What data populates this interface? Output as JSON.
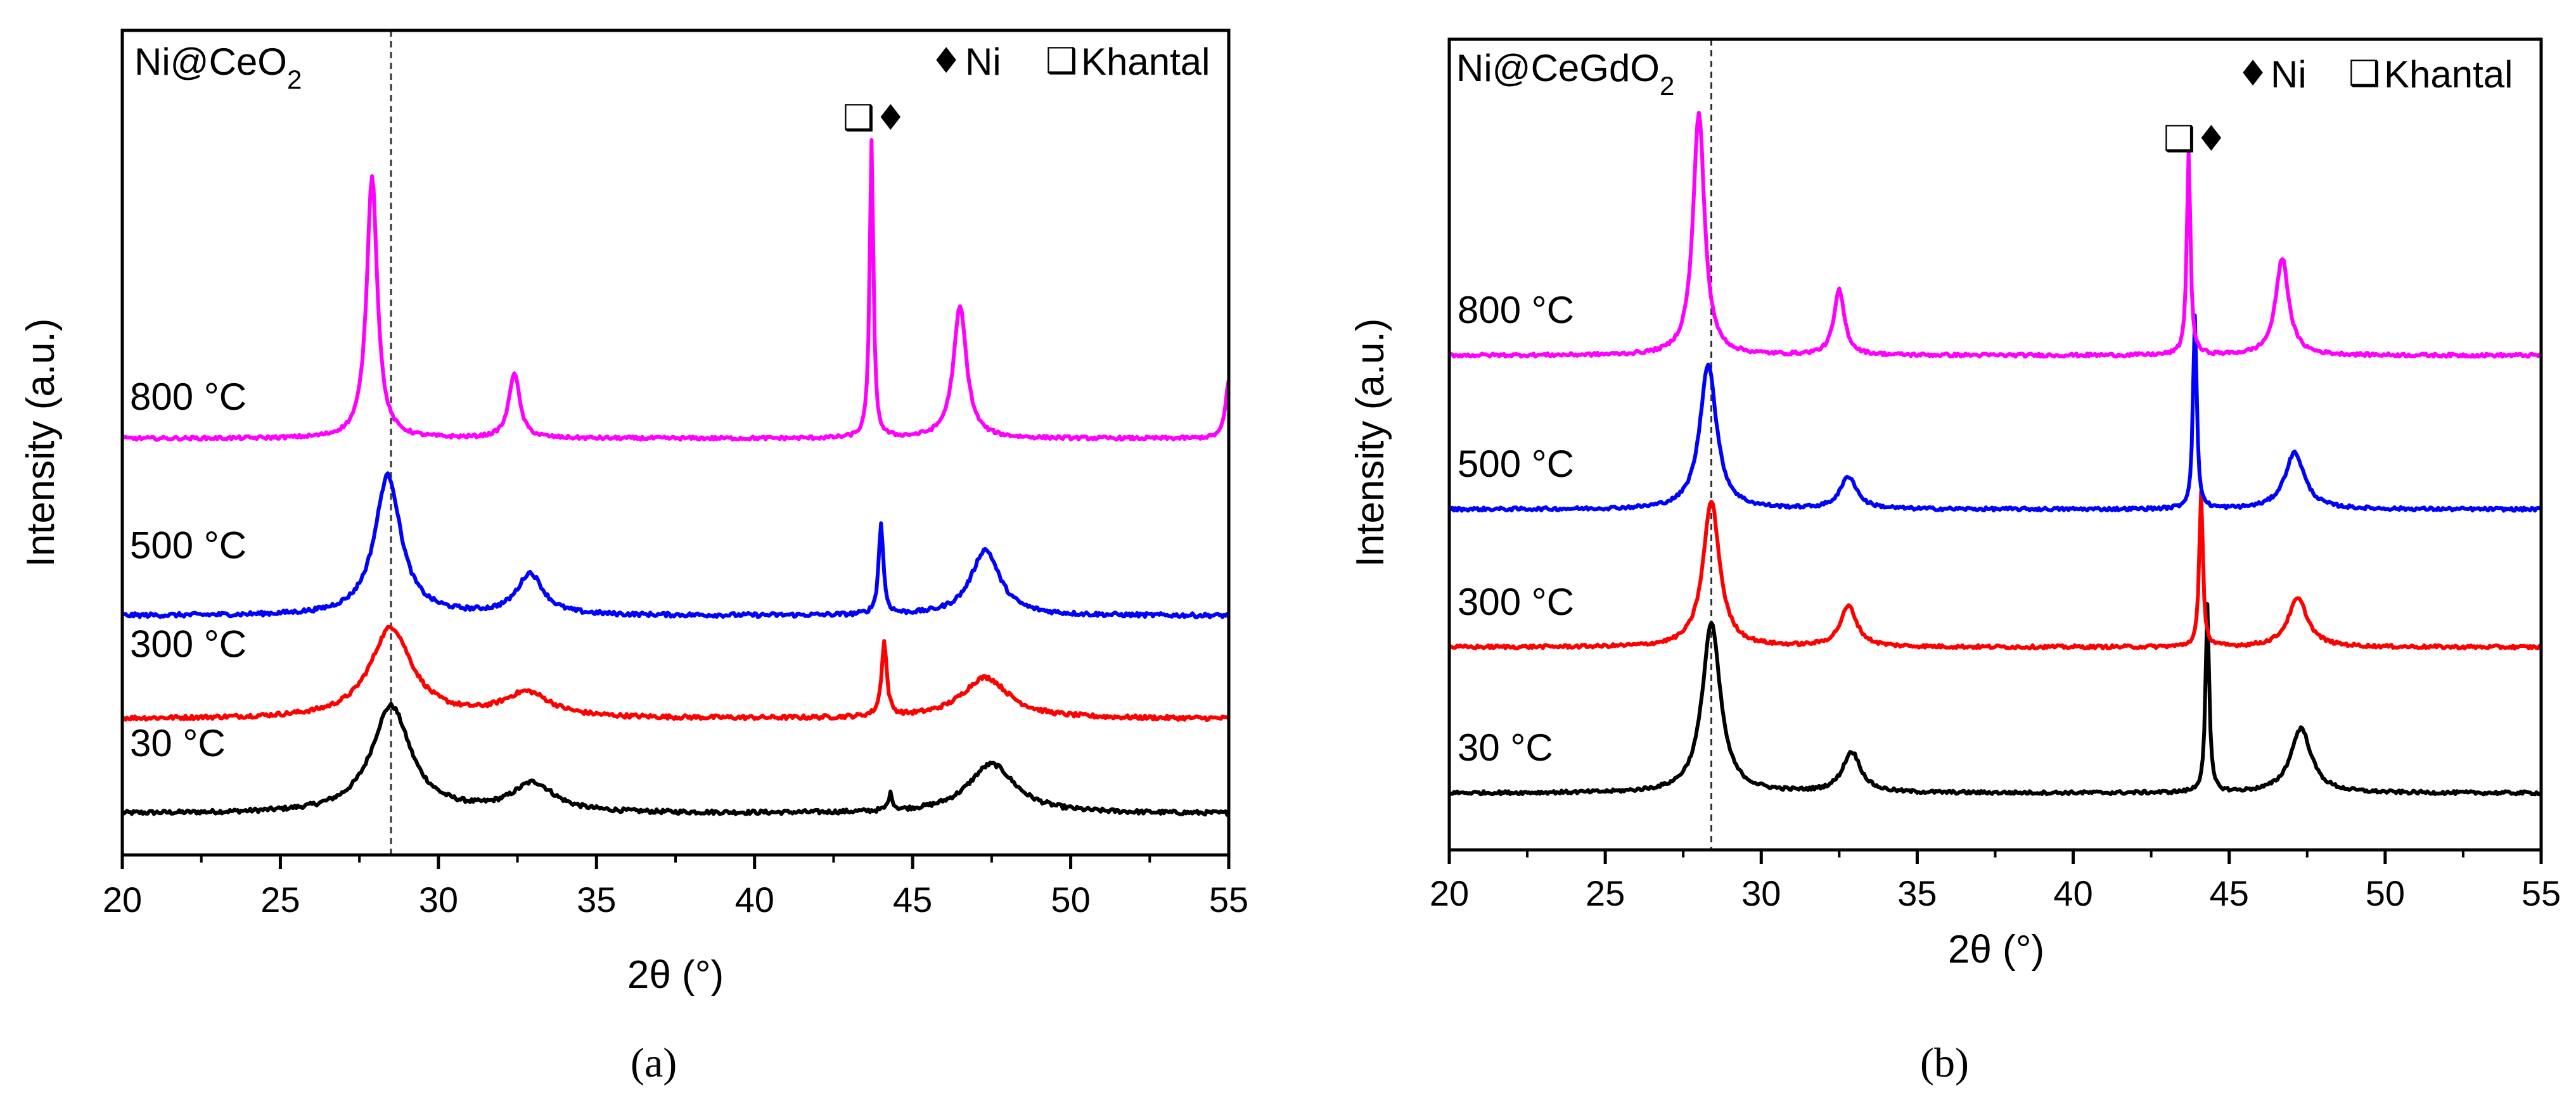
{
  "chart_data": [
    {
      "type": "line",
      "title": "Ni@CeO2",
      "title_main": "Ni@CeO",
      "title_sub": "2",
      "caption": "(a)",
      "caption_letter": "a",
      "xlabel": "2θ (°)",
      "ylabel": "Intensity (a.u.)",
      "xlim": [
        20,
        55
      ],
      "ylim": [
        0,
        100
      ],
      "xticks": [
        20,
        25,
        30,
        35,
        40,
        45,
        50,
        55
      ],
      "reference_line_x": 28.5,
      "legend": [
        {
          "symbol": "♦",
          "label": "Ni"
        },
        {
          "symbol": "❑",
          "label": "Khantal"
        }
      ],
      "peak_markers": {
        "x": 44,
        "text": "❑♦"
      },
      "series": [
        {
          "name": "30 °C",
          "color": "#000000",
          "baseline": 5,
          "noise": 0.5,
          "label_y": 12,
          "peaks": [
            [
              28.5,
              13,
              0.75
            ],
            [
              33.0,
              3.5,
              0.8
            ],
            [
              44.3,
              2,
              0.08
            ],
            [
              47.5,
              6,
              0.9
            ]
          ]
        },
        {
          "name": "300 °C",
          "color": "#ff0000",
          "baseline": 16.5,
          "noise": 0.5,
          "label_y": 24,
          "peaks": [
            [
              28.5,
              11,
              0.8
            ],
            [
              32.8,
              3,
              0.9
            ],
            [
              44.1,
              9,
              0.1
            ],
            [
              47.3,
              5,
              0.9
            ]
          ]
        },
        {
          "name": "500 °C",
          "color": "#0000ff",
          "baseline": 29,
          "noise": 0.5,
          "label_y": 36,
          "peaks": [
            [
              28.4,
              17,
              0.5
            ],
            [
              32.9,
              5,
              0.5
            ],
            [
              44.0,
              11,
              0.09
            ],
            [
              47.3,
              8,
              0.55
            ]
          ]
        },
        {
          "name": "800 °C",
          "color": "#ff00ff",
          "baseline": 50.5,
          "noise": 0.4,
          "label_y": 54,
          "peaks": [
            [
              27.9,
              32,
              0.2
            ],
            [
              32.4,
              8,
              0.2
            ],
            [
              43.7,
              36,
              0.07
            ],
            [
              46.5,
              16,
              0.25
            ],
            [
              55.0,
              7,
              0.12
            ]
          ]
        }
      ]
    },
    {
      "type": "line",
      "title": "Ni@CeGdO2",
      "title_main": "Ni@CeGdO",
      "title_sub": "2",
      "caption": "(b)",
      "caption_letter": "b",
      "xlabel": "2θ (°)",
      "ylabel": "Intensity (a.u.)",
      "xlim": [
        20,
        55
      ],
      "ylim": [
        0,
        100
      ],
      "xticks": [
        20,
        25,
        30,
        35,
        40,
        45,
        50,
        55
      ],
      "reference_line_x": 28.4,
      "legend": [
        {
          "symbol": "♦",
          "label": "Ni"
        },
        {
          "symbol": "❑",
          "label": "Khantal"
        }
      ],
      "peak_markers": {
        "x": 44,
        "text": "❑♦"
      },
      "series": [
        {
          "name": "30 °C",
          "color": "#000000",
          "baseline": 7,
          "noise": 0.4,
          "label_y": 11,
          "peaks": [
            [
              28.4,
              21,
              0.35
            ],
            [
              32.9,
              5,
              0.35
            ],
            [
              44.3,
              23,
              0.07
            ],
            [
              47.3,
              8,
              0.4
            ]
          ]
        },
        {
          "name": "300 °C",
          "color": "#ff0000",
          "baseline": 25,
          "noise": 0.4,
          "label_y": 29,
          "peaks": [
            [
              28.4,
              18,
              0.32
            ],
            [
              32.8,
              5,
              0.32
            ],
            [
              44.1,
              19,
              0.07
            ],
            [
              47.2,
              6,
              0.38
            ]
          ]
        },
        {
          "name": "500 °C",
          "color": "#0000ff",
          "baseline": 42,
          "noise": 0.4,
          "label_y": 46,
          "peaks": [
            [
              28.3,
              18,
              0.32
            ],
            [
              32.8,
              4,
              0.32
            ],
            [
              43.9,
              24,
              0.07
            ],
            [
              47.1,
              7,
              0.38
            ]
          ]
        },
        {
          "name": "800 °C",
          "color": "#ff00ff",
          "baseline": 61,
          "noise": 0.4,
          "label_y": 65,
          "peaks": [
            [
              28.0,
              30,
              0.22
            ],
            [
              32.5,
              8,
              0.2
            ],
            [
              43.7,
              25,
              0.07
            ],
            [
              46.7,
              12,
              0.25
            ]
          ]
        }
      ]
    }
  ]
}
